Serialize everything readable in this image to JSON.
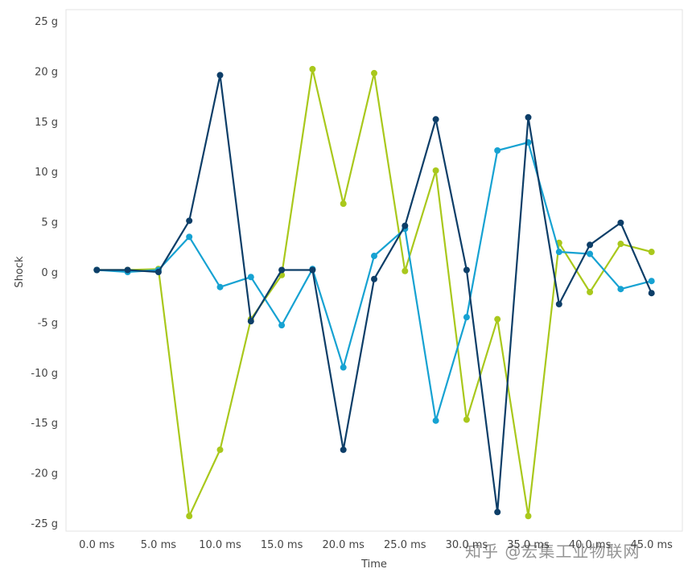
{
  "chart_data": {
    "type": "line",
    "xlabel": "Time",
    "ylabel": "Shock",
    "ylim": [
      -25,
      25
    ],
    "y_ticks": [
      "25 g",
      "20 g",
      "15 g",
      "10 g",
      "5 g",
      "0 g",
      "-5 g",
      "-10 g",
      "-15 g",
      "-20 g",
      "-25 g"
    ],
    "y_tick_values": [
      25,
      20,
      15,
      10,
      5,
      0,
      -5,
      -10,
      -15,
      -20,
      -25
    ],
    "x_ticks": [
      "0.0 ms",
      "5.0 ms",
      "10.0 ms",
      "15.0 ms",
      "20.0 ms",
      "25.0 ms",
      "30.0 ms",
      "35.0 ms",
      "40.0 ms",
      "45.0 ms"
    ],
    "x_tick_values": [
      0,
      5,
      10,
      15,
      20,
      25,
      30,
      35,
      40,
      45
    ],
    "xlim": [
      -2.5,
      47.5
    ],
    "x": [
      0,
      2.5,
      5,
      7.5,
      10,
      12.5,
      15,
      17.5,
      20,
      22.5,
      25,
      27.5,
      30,
      32.5,
      35,
      37.5,
      40,
      42.5,
      45
    ],
    "grid": false,
    "series": [
      {
        "color": "#a9c81c",
        "values": [
          0.2,
          0.2,
          0.3,
          -24.3,
          -17.7,
          -4.7,
          -0.3,
          20.2,
          6.8,
          19.8,
          0.1,
          10.1,
          -14.7,
          -4.7,
          -24.3,
          2.9,
          -2.0,
          2.8,
          2.0
        ]
      },
      {
        "color": "#16a2d2",
        "values": [
          0.2,
          0.0,
          0.2,
          3.5,
          -1.5,
          -0.5,
          -5.3,
          0.3,
          -9.5,
          1.6,
          4.3,
          -14.8,
          -4.5,
          12.1,
          12.9,
          2.0,
          1.8,
          -1.7,
          -0.9
        ]
      },
      {
        "color": "#0d3e68",
        "values": [
          0.2,
          0.2,
          0.0,
          5.1,
          19.6,
          -4.9,
          0.2,
          0.2,
          -17.7,
          -0.7,
          4.6,
          15.2,
          0.2,
          -23.9,
          15.4,
          -3.2,
          2.7,
          4.9,
          -2.1
        ]
      }
    ]
  },
  "watermark": "知乎 @宏集工业物联网"
}
